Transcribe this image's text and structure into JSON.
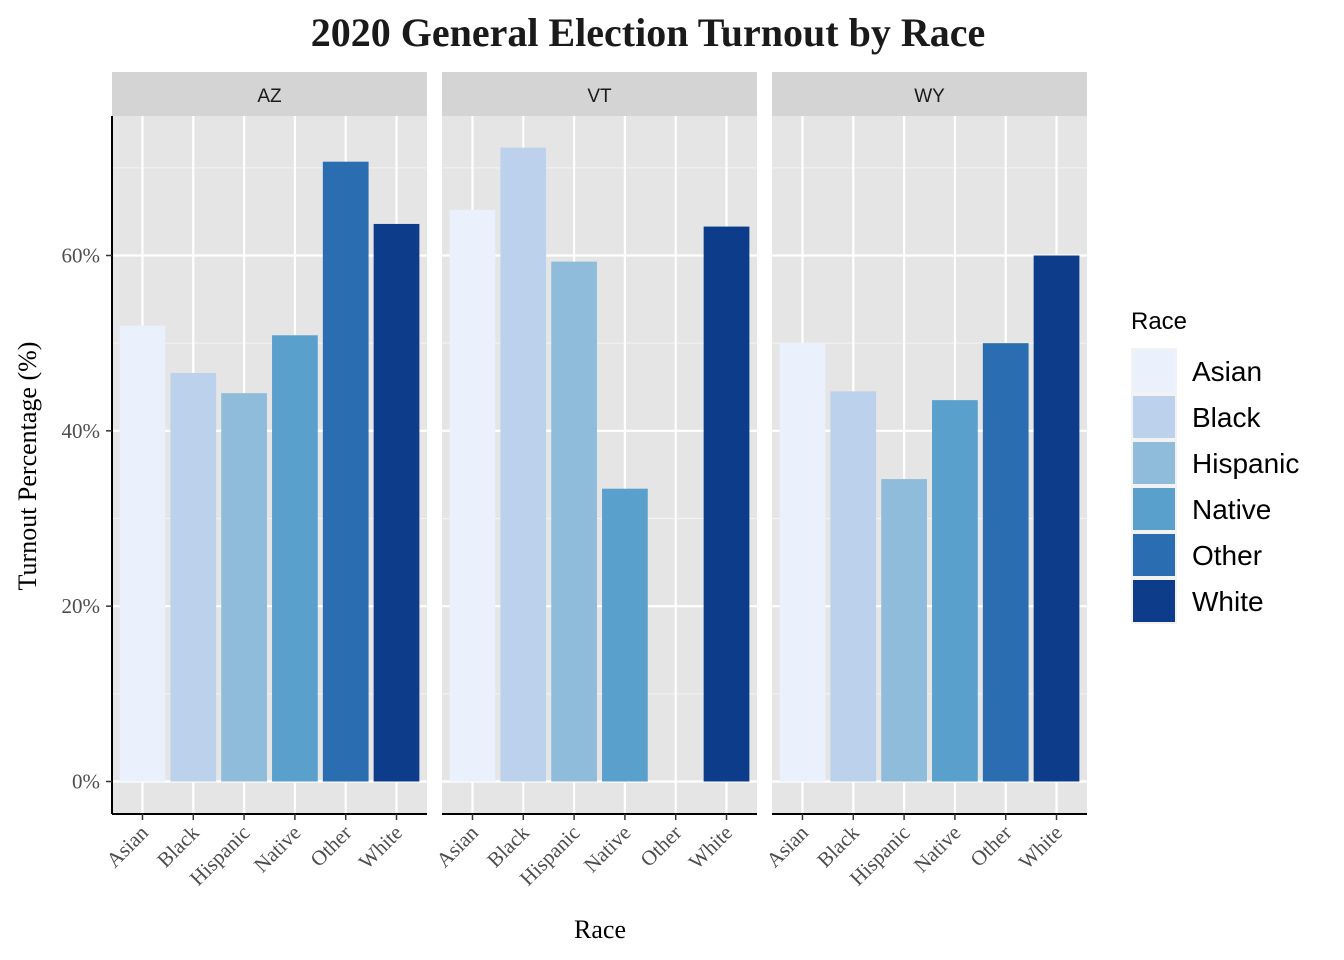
{
  "chart_data": {
    "type": "bar",
    "title": "2020 General Election Turnout by Race",
    "xlabel": "Race",
    "ylabel": "Turnout Percentage (%)",
    "ylim": [
      0,
      76
    ],
    "yticks": [
      0,
      20,
      40,
      60
    ],
    "ytick_labels": [
      "0%",
      "20%",
      "40%",
      "60%"
    ],
    "grid": true,
    "legend_position": "right",
    "legend_title": "Race",
    "categories": [
      "Asian",
      "Black",
      "Hispanic",
      "Native",
      "Other",
      "White"
    ],
    "colors": {
      "Asian": "#eaf0fc",
      "Black": "#bcd1eb",
      "Hispanic": "#8fbcdb",
      "Native": "#5aa0cd",
      "Other": "#2a6db1",
      "White": "#0d3c8a"
    },
    "facets": [
      {
        "name": "AZ",
        "values": [
          52.0,
          46.6,
          44.3,
          50.9,
          70.7,
          63.6
        ]
      },
      {
        "name": "VT",
        "values": [
          65.2,
          72.3,
          59.3,
          33.4,
          null,
          63.3
        ]
      },
      {
        "name": "WY",
        "values": [
          50.0,
          44.5,
          34.5,
          43.5,
          50.0,
          60.0
        ]
      }
    ]
  }
}
